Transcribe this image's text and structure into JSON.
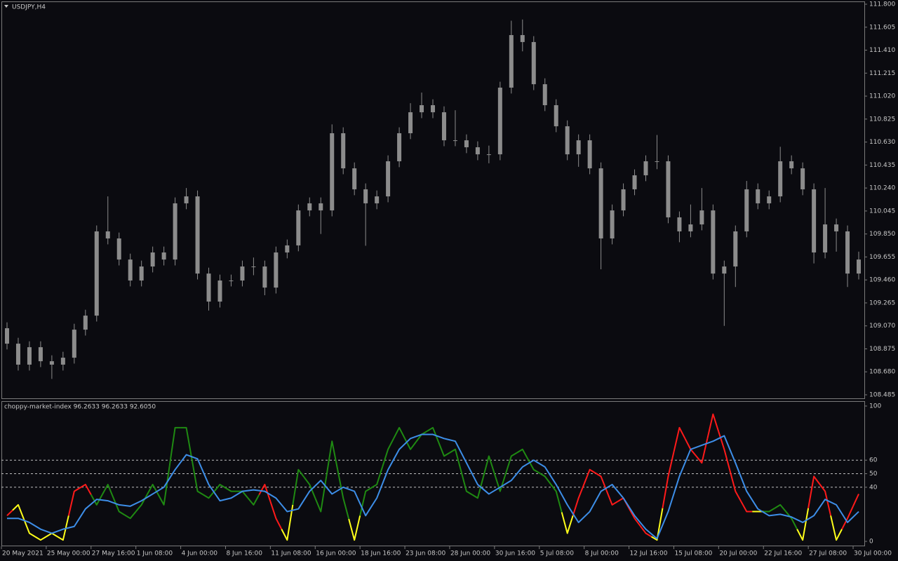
{
  "chart_data": [
    {
      "type": "candlestick",
      "title": "USDJPY,H4",
      "color": "#8c8c8c",
      "xlim": [
        0,
        77
      ],
      "ylim": [
        108.485,
        111.8
      ],
      "yticks": [
        {
          "value": 111.8,
          "label": "111.800"
        },
        {
          "value": 111.605,
          "label": "111.605"
        },
        {
          "value": 111.41,
          "label": "111.410"
        },
        {
          "value": 111.215,
          "label": "111.215"
        },
        {
          "value": 111.02,
          "label": "111.020"
        },
        {
          "value": 110.825,
          "label": "110.825"
        },
        {
          "value": 110.63,
          "label": "110.630"
        },
        {
          "value": 110.435,
          "label": "110.435"
        },
        {
          "value": 110.24,
          "label": "110.240"
        },
        {
          "value": 110.045,
          "label": "110.045"
        },
        {
          "value": 109.85,
          "label": "109.850"
        },
        {
          "value": 109.655,
          "label": "109.655"
        },
        {
          "value": 109.46,
          "label": "109.460"
        },
        {
          "value": 109.265,
          "label": "109.265"
        },
        {
          "value": 109.07,
          "label": "109.070"
        },
        {
          "value": 108.875,
          "label": "108.875"
        },
        {
          "value": 108.68,
          "label": "108.680"
        },
        {
          "value": 108.485,
          "label": "108.485"
        }
      ],
      "open": [
        109.05,
        108.919,
        108.741,
        108.889,
        108.77,
        108.741,
        108.8,
        109.038,
        109.157,
        109.872,
        109.812,
        109.633,
        109.455,
        109.574,
        109.693,
        109.633,
        110.11,
        110.169,
        109.514,
        109.276,
        109.455,
        109.455,
        109.574,
        109.574,
        109.395,
        109.693,
        109.753,
        110.05,
        110.11,
        110.05,
        110.705,
        110.407,
        110.229,
        110.11,
        110.169,
        110.467,
        110.705,
        110.883,
        110.943,
        110.883,
        110.645,
        110.645,
        110.586,
        110.526,
        110.526,
        111.092,
        111.538,
        111.479,
        111.121,
        110.943,
        110.764,
        110.526,
        110.645,
        110.407,
        109.812,
        110.05,
        110.229,
        110.348,
        110.467,
        110.467,
        109.991,
        109.872,
        109.931,
        110.05,
        109.514,
        109.574,
        109.872,
        110.229,
        110.11,
        110.169,
        110.467,
        110.407,
        110.229,
        109.693,
        109.931,
        109.872,
        109.514
      ],
      "high": [
        109.1,
        108.969,
        108.939,
        108.939,
        108.82,
        108.85,
        109.088,
        109.207,
        109.922,
        110.169,
        109.862,
        109.683,
        109.624,
        109.743,
        109.743,
        110.16,
        110.24,
        110.219,
        109.564,
        109.505,
        109.505,
        109.624,
        109.65,
        109.624,
        109.743,
        109.803,
        110.1,
        110.16,
        110.16,
        110.78,
        110.755,
        110.457,
        110.279,
        110.219,
        110.517,
        110.755,
        110.96,
        111.05,
        110.993,
        110.933,
        110.9,
        110.695,
        110.636,
        110.6,
        111.142,
        111.66,
        111.67,
        111.529,
        111.171,
        110.993,
        110.814,
        110.695,
        110.695,
        110.457,
        110.1,
        110.279,
        110.398,
        110.517,
        110.69,
        110.517,
        110.041,
        110.1,
        110.24,
        110.1,
        109.624,
        109.922,
        110.3,
        110.279,
        110.219,
        110.59,
        110.517,
        110.457,
        110.279,
        110.24,
        109.981,
        109.922,
        109.7
      ],
      "low": [
        108.87,
        108.691,
        108.691,
        108.72,
        108.62,
        108.691,
        108.75,
        108.988,
        109.107,
        109.762,
        109.583,
        109.405,
        109.405,
        109.524,
        109.583,
        109.583,
        110.06,
        109.464,
        109.2,
        109.226,
        109.405,
        109.405,
        109.5,
        109.33,
        109.345,
        109.643,
        109.703,
        110.0,
        109.85,
        110.0,
        110.357,
        110.179,
        109.75,
        110.06,
        110.119,
        110.417,
        110.655,
        110.833,
        110.833,
        110.595,
        110.595,
        110.536,
        110.476,
        110.45,
        110.476,
        111.042,
        111.4,
        111.071,
        110.893,
        110.714,
        110.476,
        110.42,
        110.357,
        109.55,
        109.762,
        110.0,
        110.179,
        110.298,
        110.4,
        109.941,
        109.78,
        109.822,
        109.881,
        109.464,
        109.07,
        109.4,
        109.822,
        110.06,
        110.06,
        110.119,
        110.357,
        110.179,
        109.6,
        109.643,
        109.7,
        109.4,
        109.464
      ],
      "close": [
        108.919,
        108.741,
        108.889,
        108.77,
        108.741,
        108.8,
        109.038,
        109.157,
        109.872,
        109.812,
        109.633,
        109.455,
        109.574,
        109.693,
        109.633,
        110.11,
        110.169,
        109.514,
        109.276,
        109.455,
        109.455,
        109.574,
        109.574,
        109.395,
        109.693,
        109.753,
        110.05,
        110.11,
        110.05,
        110.705,
        110.407,
        110.229,
        110.11,
        110.169,
        110.467,
        110.705,
        110.883,
        110.943,
        110.883,
        110.645,
        110.645,
        110.586,
        110.526,
        110.526,
        111.092,
        111.538,
        111.479,
        111.121,
        110.943,
        110.764,
        110.526,
        110.645,
        110.407,
        109.812,
        110.05,
        110.229,
        110.348,
        110.467,
        110.467,
        109.991,
        109.872,
        109.931,
        110.05,
        109.514,
        109.574,
        109.872,
        110.229,
        110.11,
        110.169,
        110.467,
        110.407,
        110.229,
        109.693,
        109.931,
        109.872,
        109.514,
        109.633
      ]
    },
    {
      "type": "line",
      "title": "choppy-market-index 96.2633 96.2633 92.6050",
      "xlim": [
        0,
        77
      ],
      "xticks": [
        {
          "value": 0,
          "label": "20 May 2021"
        },
        {
          "value": 4,
          "label": "25 May 00:00"
        },
        {
          "value": 8,
          "label": "27 May 16:00"
        },
        {
          "value": 12,
          "label": "1 Jun 08:00"
        },
        {
          "value": 16,
          "label": "4 Jun 00:00"
        },
        {
          "value": 20,
          "label": "8 Jun 16:00"
        },
        {
          "value": 24,
          "label": "11 Jun 08:00"
        },
        {
          "value": 28,
          "label": "16 Jun 00:00"
        },
        {
          "value": 32,
          "label": "18 Jun 16:00"
        },
        {
          "value": 36,
          "label": "23 Jun 08:00"
        },
        {
          "value": 40,
          "label": "28 Jun 00:00"
        },
        {
          "value": 44,
          "label": "30 Jun 16:00"
        },
        {
          "value": 48,
          "label": "5 Jul 08:00"
        },
        {
          "value": 52,
          "label": "8 Jul 00:00"
        },
        {
          "value": 56,
          "label": "12 Jul 16:00"
        },
        {
          "value": 60,
          "label": "15 Jul 08:00"
        },
        {
          "value": 64,
          "label": "20 Jul 00:00"
        },
        {
          "value": 68,
          "label": "22 Jul 16:00"
        },
        {
          "value": 72,
          "label": "27 Jul 08:00"
        },
        {
          "value": 76,
          "label": "30 Jul 00:00"
        }
      ],
      "ylim": [
        0,
        100
      ],
      "yticks": [
        0,
        40,
        50,
        60,
        100
      ],
      "grid": "dashed",
      "series": [
        {
          "values": [
            19,
            27,
            6,
            1,
            6,
            1,
            37,
            42,
            27,
            42,
            22,
            17,
            27,
            42,
            27,
            84,
            84,
            37,
            32,
            42,
            37,
            37,
            27,
            42,
            17,
            1,
            53,
            42,
            22,
            74,
            32,
            1,
            37,
            42,
            68,
            84,
            68,
            79,
            84,
            63,
            68,
            37,
            32,
            63,
            37,
            63,
            68,
            53,
            48,
            37,
            6,
            32,
            53,
            48,
            27,
            32,
            17,
            6,
            1,
            48,
            84,
            68,
            58,
            94,
            68,
            37,
            22,
            22,
            22,
            27,
            17,
            1,
            48,
            37,
            1,
            17,
            35
          ],
          "colors": [
            "#ff1a1a",
            "#ffff1a",
            "#ffff1a",
            "#ffff1a",
            "#ffff1a",
            "#ffff1a",
            "#ff1a1a",
            "#ff1a1a",
            "#1f8a12",
            "#1f8a12",
            "#1f8a12",
            "#1f8a12",
            "#1f8a12",
            "#1f8a12",
            "#1f8a12",
            "#1f8a12",
            "#1f8a12",
            "#1f8a12",
            "#1f8a12",
            "#1f8a12",
            "#1f8a12",
            "#1f8a12",
            "#1f8a12",
            "#ff1a1a",
            "#ff1a1a",
            "#ffff1a",
            "#1f8a12",
            "#1f8a12",
            "#1f8a12",
            "#1f8a12",
            "#1f8a12",
            "#ffff1a",
            "#1f8a12",
            "#1f8a12",
            "#1f8a12",
            "#1f8a12",
            "#1f8a12",
            "#1f8a12",
            "#1f8a12",
            "#1f8a12",
            "#1f8a12",
            "#1f8a12",
            "#1f8a12",
            "#1f8a12",
            "#1f8a12",
            "#1f8a12",
            "#1f8a12",
            "#1f8a12",
            "#1f8a12",
            "#1f8a12",
            "#ffff1a",
            "#ff1a1a",
            "#ff1a1a",
            "#ff1a1a",
            "#ff1a1a",
            "#ff1a1a",
            "#ff1a1a",
            "#ff1a1a",
            "#ffff1a",
            "#ff1a1a",
            "#ff1a1a",
            "#ff1a1a",
            "#ff1a1a",
            "#ff1a1a",
            "#ff1a1a",
            "#ff1a1a",
            "#ff1a1a",
            "#ffff1a",
            "#1f8a12",
            "#1f8a12",
            "#1f8a12",
            "#ffff1a",
            "#ff1a1a",
            "#ff1a1a",
            "#ffff1a",
            "#ff1a1a",
            "#ff1a1a"
          ]
        },
        {
          "color": "#3d8ee8",
          "values": [
            17,
            17,
            14,
            9,
            6,
            9,
            11,
            24,
            31,
            30,
            27,
            26,
            30,
            35,
            40,
            53,
            64,
            61,
            42,
            30,
            32,
            37,
            38,
            37,
            32,
            22,
            24,
            37,
            45,
            35,
            40,
            37,
            19,
            32,
            53,
            68,
            76,
            79,
            79,
            76,
            74,
            58,
            42,
            35,
            40,
            45,
            55,
            60,
            55,
            42,
            27,
            14,
            22,
            37,
            42,
            32,
            19,
            9,
            2,
            22,
            48,
            68,
            71,
            74,
            78,
            58,
            37,
            24,
            19,
            20,
            18,
            14,
            19,
            31,
            27,
            14,
            22
          ]
        }
      ]
    }
  ]
}
